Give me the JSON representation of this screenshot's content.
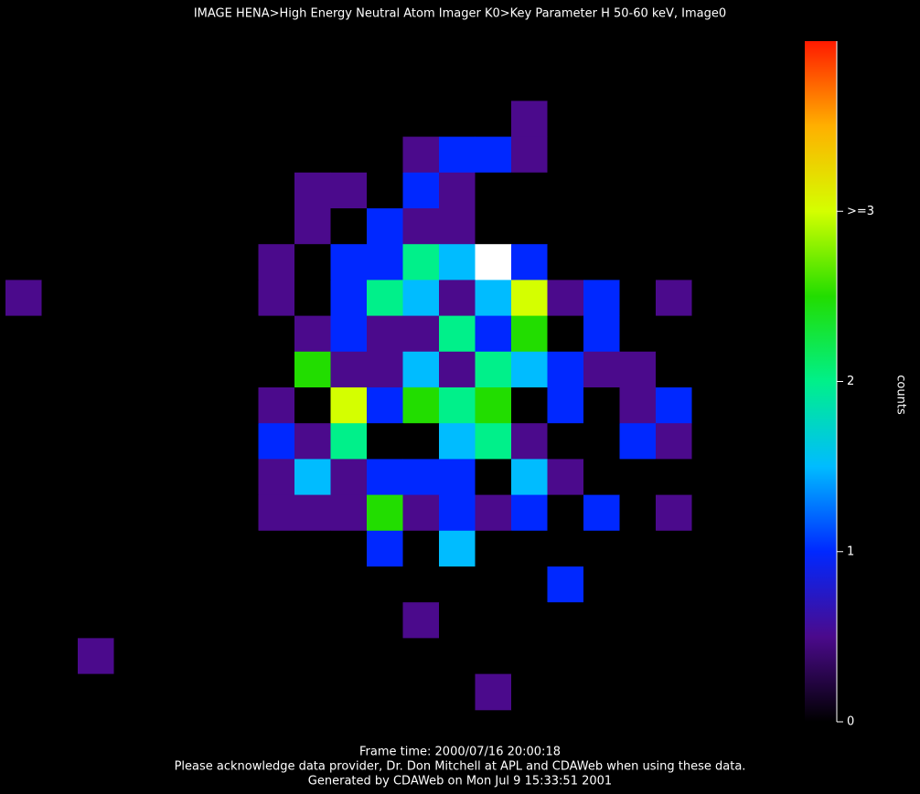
{
  "chart_data": {
    "type": "heatmap",
    "title": "IMAGE  HENA>High Energy Neutral Atom Imager  K0>Key Parameter H 50-60 keV, Image0",
    "footer": [
      "Frame time: 2000/07/16 20:00:18",
      "Please acknowledge data provider, Dr. Don Mitchell at APL and CDAWeb when using these data.",
      "Generated by CDAWeb on Mon Jul  9 15:33:51 2001"
    ],
    "colorbar_label": "counts",
    "zlim": [
      0,
      4
    ],
    "zticks": [
      0,
      1,
      2,
      {
        "value": 3,
        "label": ">=3"
      }
    ],
    "colorscale": [
      [
        0,
        "#000000"
      ],
      [
        0.5,
        "#4b0a8c"
      ],
      [
        1,
        "#0028ff"
      ],
      [
        1.5,
        "#00bcff"
      ],
      [
        2,
        "#00f08a"
      ],
      [
        2.5,
        "#22dd00"
      ],
      [
        3,
        "#d4ff00"
      ],
      [
        3.5,
        "#ffb000"
      ],
      [
        4,
        "#ff1a00"
      ]
    ],
    "over_color": "#ffffff",
    "z": [
      [
        0,
        0,
        0,
        0,
        0,
        0,
        0,
        0,
        0,
        0,
        0,
        0,
        0,
        0,
        0,
        0,
        0,
        0,
        0,
        0
      ],
      [
        0,
        0,
        0,
        0,
        0,
        0,
        0,
        0,
        0,
        0,
        0,
        0,
        0,
        0,
        0,
        0,
        0,
        0,
        0,
        0
      ],
      [
        0,
        0,
        0,
        0,
        0,
        0,
        0,
        0,
        0,
        0,
        0,
        0,
        0,
        0,
        0.5,
        0,
        0,
        0,
        0,
        0
      ],
      [
        0,
        0,
        0,
        0,
        0,
        0,
        0,
        0,
        0,
        0,
        0,
        0.5,
        1,
        1,
        0.5,
        0,
        0,
        0,
        0,
        0
      ],
      [
        0,
        0,
        0,
        0,
        0,
        0,
        0,
        0,
        0.5,
        0.5,
        0,
        1,
        0.5,
        0,
        0,
        0,
        0,
        0,
        0,
        0
      ],
      [
        0,
        0,
        0,
        0,
        0,
        0,
        0,
        0,
        0.5,
        0,
        1,
        0.5,
        0.5,
        0,
        0,
        0,
        0,
        0,
        0,
        0
      ],
      [
        0,
        0,
        0,
        0,
        0,
        0,
        0,
        0.5,
        0,
        1,
        1,
        2,
        1.5,
        4.5,
        1,
        0,
        0,
        0,
        0,
        0
      ],
      [
        0.5,
        0,
        0,
        0,
        0,
        0,
        0,
        0.5,
        0,
        1,
        2,
        1.5,
        0.5,
        1.5,
        3,
        0.5,
        1,
        0,
        0.5,
        0
      ],
      [
        0,
        0,
        0,
        0,
        0,
        0,
        0,
        0,
        0.5,
        1,
        0.5,
        0.5,
        2,
        1,
        2.5,
        0,
        1,
        0,
        0,
        0
      ],
      [
        0,
        0,
        0,
        0,
        0,
        0,
        0,
        0,
        2.5,
        0.5,
        0.5,
        1.5,
        0.5,
        2,
        1.5,
        1,
        0.5,
        0.5,
        0,
        0
      ],
      [
        0,
        0,
        0,
        0,
        0,
        0,
        0,
        0.5,
        0,
        3,
        1,
        2.5,
        2,
        2.5,
        0,
        1,
        0,
        0.5,
        1,
        0
      ],
      [
        0,
        0,
        0,
        0,
        0,
        0,
        0,
        1,
        0.5,
        2,
        0,
        0,
        1.5,
        2,
        0.5,
        0,
        0,
        1,
        0.5,
        0
      ],
      [
        0,
        0,
        0,
        0,
        0,
        0,
        0,
        0.5,
        1.5,
        0.5,
        1,
        1,
        1,
        0,
        1.5,
        0.5,
        0,
        0,
        0,
        0
      ],
      [
        0,
        0,
        0,
        0,
        0,
        0,
        0,
        0.5,
        0.5,
        0.5,
        2.5,
        0.5,
        1,
        0.5,
        1,
        0,
        1,
        0,
        0.5,
        0
      ],
      [
        0,
        0,
        0,
        0,
        0,
        0,
        0,
        0,
        0,
        0,
        1,
        0,
        1.5,
        0,
        0,
        0,
        0,
        0,
        0,
        0
      ],
      [
        0,
        0,
        0,
        0,
        0,
        0,
        0,
        0,
        0,
        0,
        0,
        0,
        0,
        0,
        0,
        1,
        0,
        0,
        0,
        0
      ],
      [
        0,
        0,
        0,
        0,
        0,
        0,
        0,
        0,
        0,
        0,
        0,
        0.5,
        0,
        0,
        0,
        0,
        0,
        0,
        0,
        0
      ],
      [
        0,
        0,
        0.5,
        0,
        0,
        0,
        0,
        0,
        0,
        0,
        0,
        0,
        0,
        0,
        0,
        0,
        0,
        0,
        0,
        0
      ],
      [
        0,
        0,
        0,
        0,
        0,
        0,
        0,
        0,
        0,
        0,
        0,
        0,
        0,
        0.5,
        0,
        0,
        0,
        0,
        0,
        0
      ]
    ]
  }
}
